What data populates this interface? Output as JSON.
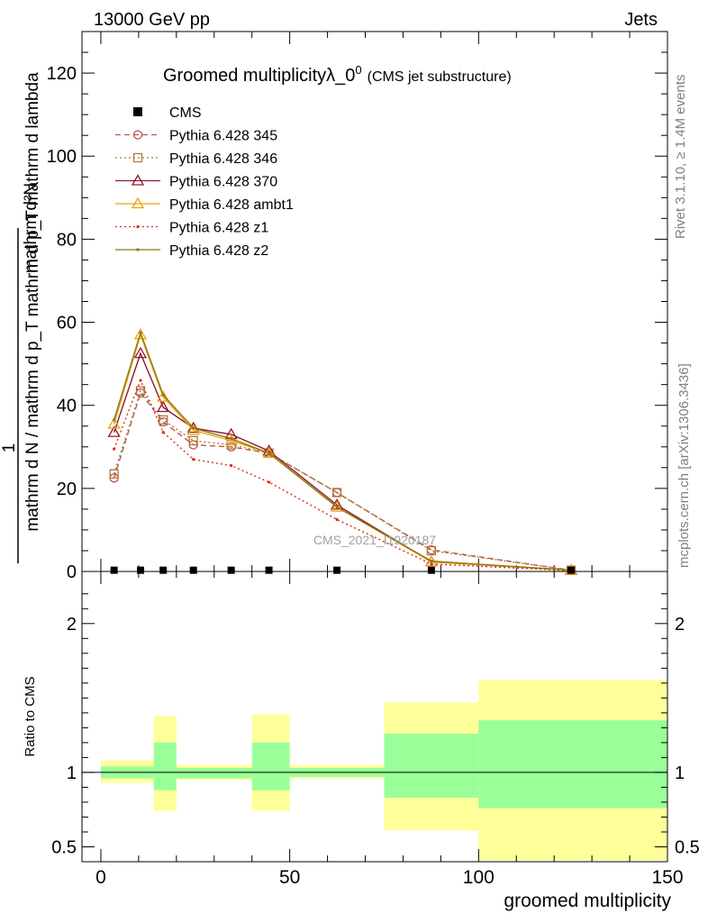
{
  "header": {
    "left": "13000 GeV pp",
    "right": "Jets"
  },
  "side_text": {
    "rivet": "Rivet 3.1.10, ≥ 1.4M events",
    "mcplots": "mcplots.cern.ch [arXiv:1306.3436]"
  },
  "chart_data": [
    {
      "type": "line",
      "title_main": "Groomed multiplicityλ_0",
      "title_sup": "0",
      "title_sub": "(CMS jet substructure)",
      "ylabel_numerator": "mathrm d²N",
      "ylabel_fraction_one": "1",
      "ylabel_denominator": "mathrm d N / mathrm d p_T mathrm d p_T mathrm d lambda",
      "watermark": "CMS_2021_I1920187",
      "xlim": [
        -5,
        150
      ],
      "ylim": [
        0,
        130
      ],
      "y_ticks": [
        0,
        20,
        40,
        60,
        80,
        100,
        120
      ],
      "x_ticks": [
        0,
        50,
        100,
        150
      ],
      "cms": {
        "name": "CMS",
        "color": "#000000",
        "x": [
          3.5,
          10.5,
          16.5,
          24.5,
          34.5,
          44.5,
          62.5,
          87.5,
          124.5
        ],
        "y": [
          0.3,
          0.3,
          0.3,
          0.3,
          0.3,
          0.3,
          0.3,
          0.3,
          0.3
        ]
      },
      "series": [
        {
          "name": "Pythia 6.428 345",
          "color": "#b8574a",
          "dash": "6,4",
          "marker": "circle",
          "x": [
            3.5,
            10.5,
            16.5,
            24.5,
            34.5,
            44.5,
            62.5,
            87.5,
            124.5
          ],
          "y": [
            22.5,
            43,
            36,
            30.5,
            30,
            28.5,
            19,
            5.2,
            0.3
          ]
        },
        {
          "name": "Pythia 6.428 346",
          "color": "#ad7a3a",
          "dash": "2,3",
          "marker": "square",
          "x": [
            3.5,
            10.5,
            16.5,
            24.5,
            34.5,
            44.5,
            62.5,
            87.5,
            124.5
          ],
          "y": [
            23.5,
            43.5,
            36.5,
            31.5,
            30.5,
            28.5,
            19,
            5.0,
            0.3
          ]
        },
        {
          "name": "Pythia 6.428 370",
          "color": "#8b1a2a",
          "dash": "",
          "marker": "triangle",
          "x": [
            3.5,
            10.5,
            16.5,
            24.5,
            34.5,
            44.5,
            62.5,
            87.5,
            124.5
          ],
          "y": [
            33.5,
            52.5,
            39.5,
            34.5,
            33,
            29,
            16,
            2.3,
            0.3
          ]
        },
        {
          "name": "Pythia 6.428 ambt1",
          "color": "#f0a010",
          "dash": "",
          "marker": "triangle",
          "x": [
            3.5,
            10.5,
            16.5,
            24.5,
            34.5,
            44.5,
            62.5,
            87.5,
            124.5
          ],
          "y": [
            35.5,
            57,
            42,
            34,
            31.5,
            28.5,
            15.5,
            2.3,
            0.3
          ]
        },
        {
          "name": "Pythia 6.428 z1",
          "color": "#e0281a",
          "dash": "2,3",
          "marker": "dot",
          "x": [
            3.5,
            10.5,
            16.5,
            24.5,
            34.5,
            44.5,
            62.5,
            87.5,
            124.5
          ],
          "y": [
            29.5,
            46,
            33.5,
            27,
            25.5,
            21.5,
            12.5,
            1.8,
            0.2
          ]
        },
        {
          "name": "Pythia 6.428 z2",
          "color": "#8a7a10",
          "dash": "",
          "marker": "dot",
          "x": [
            3.5,
            10.5,
            16.5,
            24.5,
            34.5,
            44.5,
            62.5,
            87.5,
            124.5
          ],
          "y": [
            36.5,
            57.5,
            42.5,
            34.5,
            32,
            28.5,
            15.5,
            2.5,
            0.3
          ]
        }
      ]
    },
    {
      "type": "area",
      "ylabel": "Ratio to CMS",
      "xlabel": "groomed multiplicity",
      "xlim": [
        -5,
        150
      ],
      "ylim": [
        0.4,
        2.35
      ],
      "y_ticks": [
        0.5,
        1,
        2
      ],
      "x_ticks": [
        0,
        50,
        100,
        150
      ],
      "inner_color": "#99ff99",
      "outer_color": "#ffff99",
      "bins": [
        {
          "lo": 0,
          "hi": 14,
          "inner": [
            0.96,
            1.04
          ],
          "outer": [
            0.93,
            1.08
          ]
        },
        {
          "lo": 14,
          "hi": 20,
          "inner": [
            0.88,
            1.2
          ],
          "outer": [
            0.74,
            1.38
          ]
        },
        {
          "lo": 20,
          "hi": 40,
          "inner": [
            0.96,
            1.03
          ],
          "outer": [
            0.95,
            1.05
          ]
        },
        {
          "lo": 40,
          "hi": 50,
          "inner": [
            0.88,
            1.2
          ],
          "outer": [
            0.74,
            1.39
          ]
        },
        {
          "lo": 50,
          "hi": 75,
          "inner": [
            0.97,
            1.03
          ],
          "outer": [
            0.96,
            1.05
          ]
        },
        {
          "lo": 75,
          "hi": 100,
          "inner": [
            0.83,
            1.26
          ],
          "outer": [
            0.61,
            1.47
          ]
        },
        {
          "lo": 100,
          "hi": 150,
          "inner": [
            0.76,
            1.35
          ],
          "outer": [
            0.41,
            1.62
          ]
        }
      ]
    }
  ]
}
